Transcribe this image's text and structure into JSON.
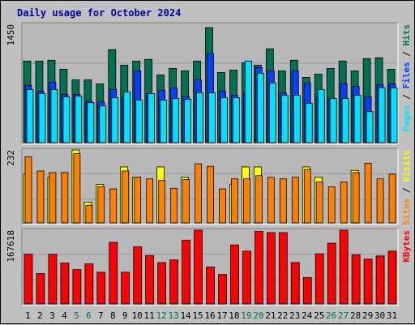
{
  "colors": {
    "background": "#c0c0c0",
    "plot_bg": "#b8b8b8",
    "title": "#0000a0",
    "hits": "#007050",
    "files": "#0040ff",
    "pages": "#00e0ff",
    "visits": "#ffff00",
    "sites": "#ff8000",
    "kbytes": "#ff0000",
    "weekend_label": "#007050",
    "weekday_label": "#000000"
  },
  "chart_data": [
    {
      "type": "bar",
      "title": "Daily usage for October 2024",
      "ylabel_max": "1450",
      "ylim": [
        0,
        1450
      ],
      "legend": [
        "Pages",
        "Files",
        "Hits"
      ],
      "categories": [
        "1",
        "2",
        "3",
        "4",
        "5",
        "6",
        "7",
        "8",
        "9",
        "10",
        "11",
        "12",
        "13",
        "14",
        "15",
        "16",
        "17",
        "18",
        "19",
        "20",
        "21",
        "22",
        "23",
        "24",
        "25",
        "26",
        "27",
        "28",
        "29",
        "30",
        "31"
      ],
      "weekend_days": [
        "5",
        "6",
        "12",
        "13",
        "19",
        "20",
        "26",
        "27"
      ],
      "series": [
        {
          "name": "Hits",
          "values": [
            1000,
            1000,
            1010,
            900,
            770,
            770,
            720,
            1140,
            950,
            1000,
            1020,
            830,
            910,
            880,
            1000,
            1410,
            860,
            890,
            980,
            950,
            1150,
            880,
            1010,
            800,
            840,
            910,
            1000,
            880,
            1030,
            1040,
            900
          ]
        },
        {
          "name": "Files",
          "values": [
            700,
            630,
            740,
            590,
            590,
            510,
            500,
            650,
            560,
            880,
            600,
            640,
            670,
            560,
            770,
            1090,
            630,
            580,
            620,
            920,
            880,
            610,
            880,
            730,
            560,
            540,
            720,
            690,
            560,
            710,
            720
          ]
        },
        {
          "name": "Pages",
          "values": [
            650,
            600,
            650,
            560,
            570,
            490,
            450,
            550,
            620,
            520,
            600,
            520,
            540,
            530,
            610,
            610,
            550,
            550,
            1000,
            850,
            730,
            580,
            580,
            480,
            650,
            540,
            540,
            580,
            380,
            670,
            670
          ]
        }
      ]
    },
    {
      "type": "bar",
      "ylabel_max": "232",
      "ylim": [
        0,
        232
      ],
      "legend": [
        "Sites",
        "Visits"
      ],
      "categories": [
        "1",
        "2",
        "3",
        "4",
        "5",
        "6",
        "7",
        "8",
        "9",
        "10",
        "11",
        "12",
        "13",
        "14",
        "15",
        "16",
        "17",
        "18",
        "19",
        "20",
        "21",
        "22",
        "23",
        "24",
        "25",
        "26",
        "27",
        "28",
        "29",
        "30",
        "31"
      ],
      "series": [
        {
          "name": "Visits",
          "values": [
            155,
            0,
            145,
            0,
            232,
            66,
            122,
            0,
            178,
            145,
            0,
            178,
            0,
            145,
            0,
            0,
            0,
            122,
            178,
            178,
            0,
            0,
            0,
            178,
            145,
            0,
            0,
            167,
            0,
            0,
            0
          ]
        },
        {
          "name": "Sites",
          "values": [
            210,
            165,
            160,
            160,
            220,
            56,
            115,
            108,
            165,
            145,
            140,
            135,
            110,
            138,
            188,
            180,
            108,
            140,
            140,
            150,
            145,
            140,
            145,
            170,
            130,
            115,
            130,
            160,
            190,
            140,
            155
          ]
        }
      ]
    },
    {
      "type": "bar",
      "ylabel_max": "167618",
      "ylim": [
        0,
        167618
      ],
      "legend": [
        "KBytes"
      ],
      "categories": [
        "1",
        "2",
        "3",
        "4",
        "5",
        "6",
        "7",
        "8",
        "9",
        "10",
        "11",
        "12",
        "13",
        "14",
        "15",
        "16",
        "17",
        "18",
        "19",
        "20",
        "21",
        "22",
        "23",
        "24",
        "25",
        "26",
        "27",
        "28",
        "29",
        "30",
        "31"
      ],
      "series": [
        {
          "name": "KBytes",
          "values": [
            113000,
            69000,
            113000,
            93000,
            78000,
            91000,
            72000,
            140000,
            72000,
            130000,
            110000,
            94000,
            100000,
            145000,
            167618,
            84000,
            67000,
            134000,
            120000,
            165000,
            162000,
            162000,
            94000,
            60000,
            114000,
            138000,
            167618,
            112000,
            102000,
            109000,
            120000
          ]
        }
      ]
    }
  ]
}
